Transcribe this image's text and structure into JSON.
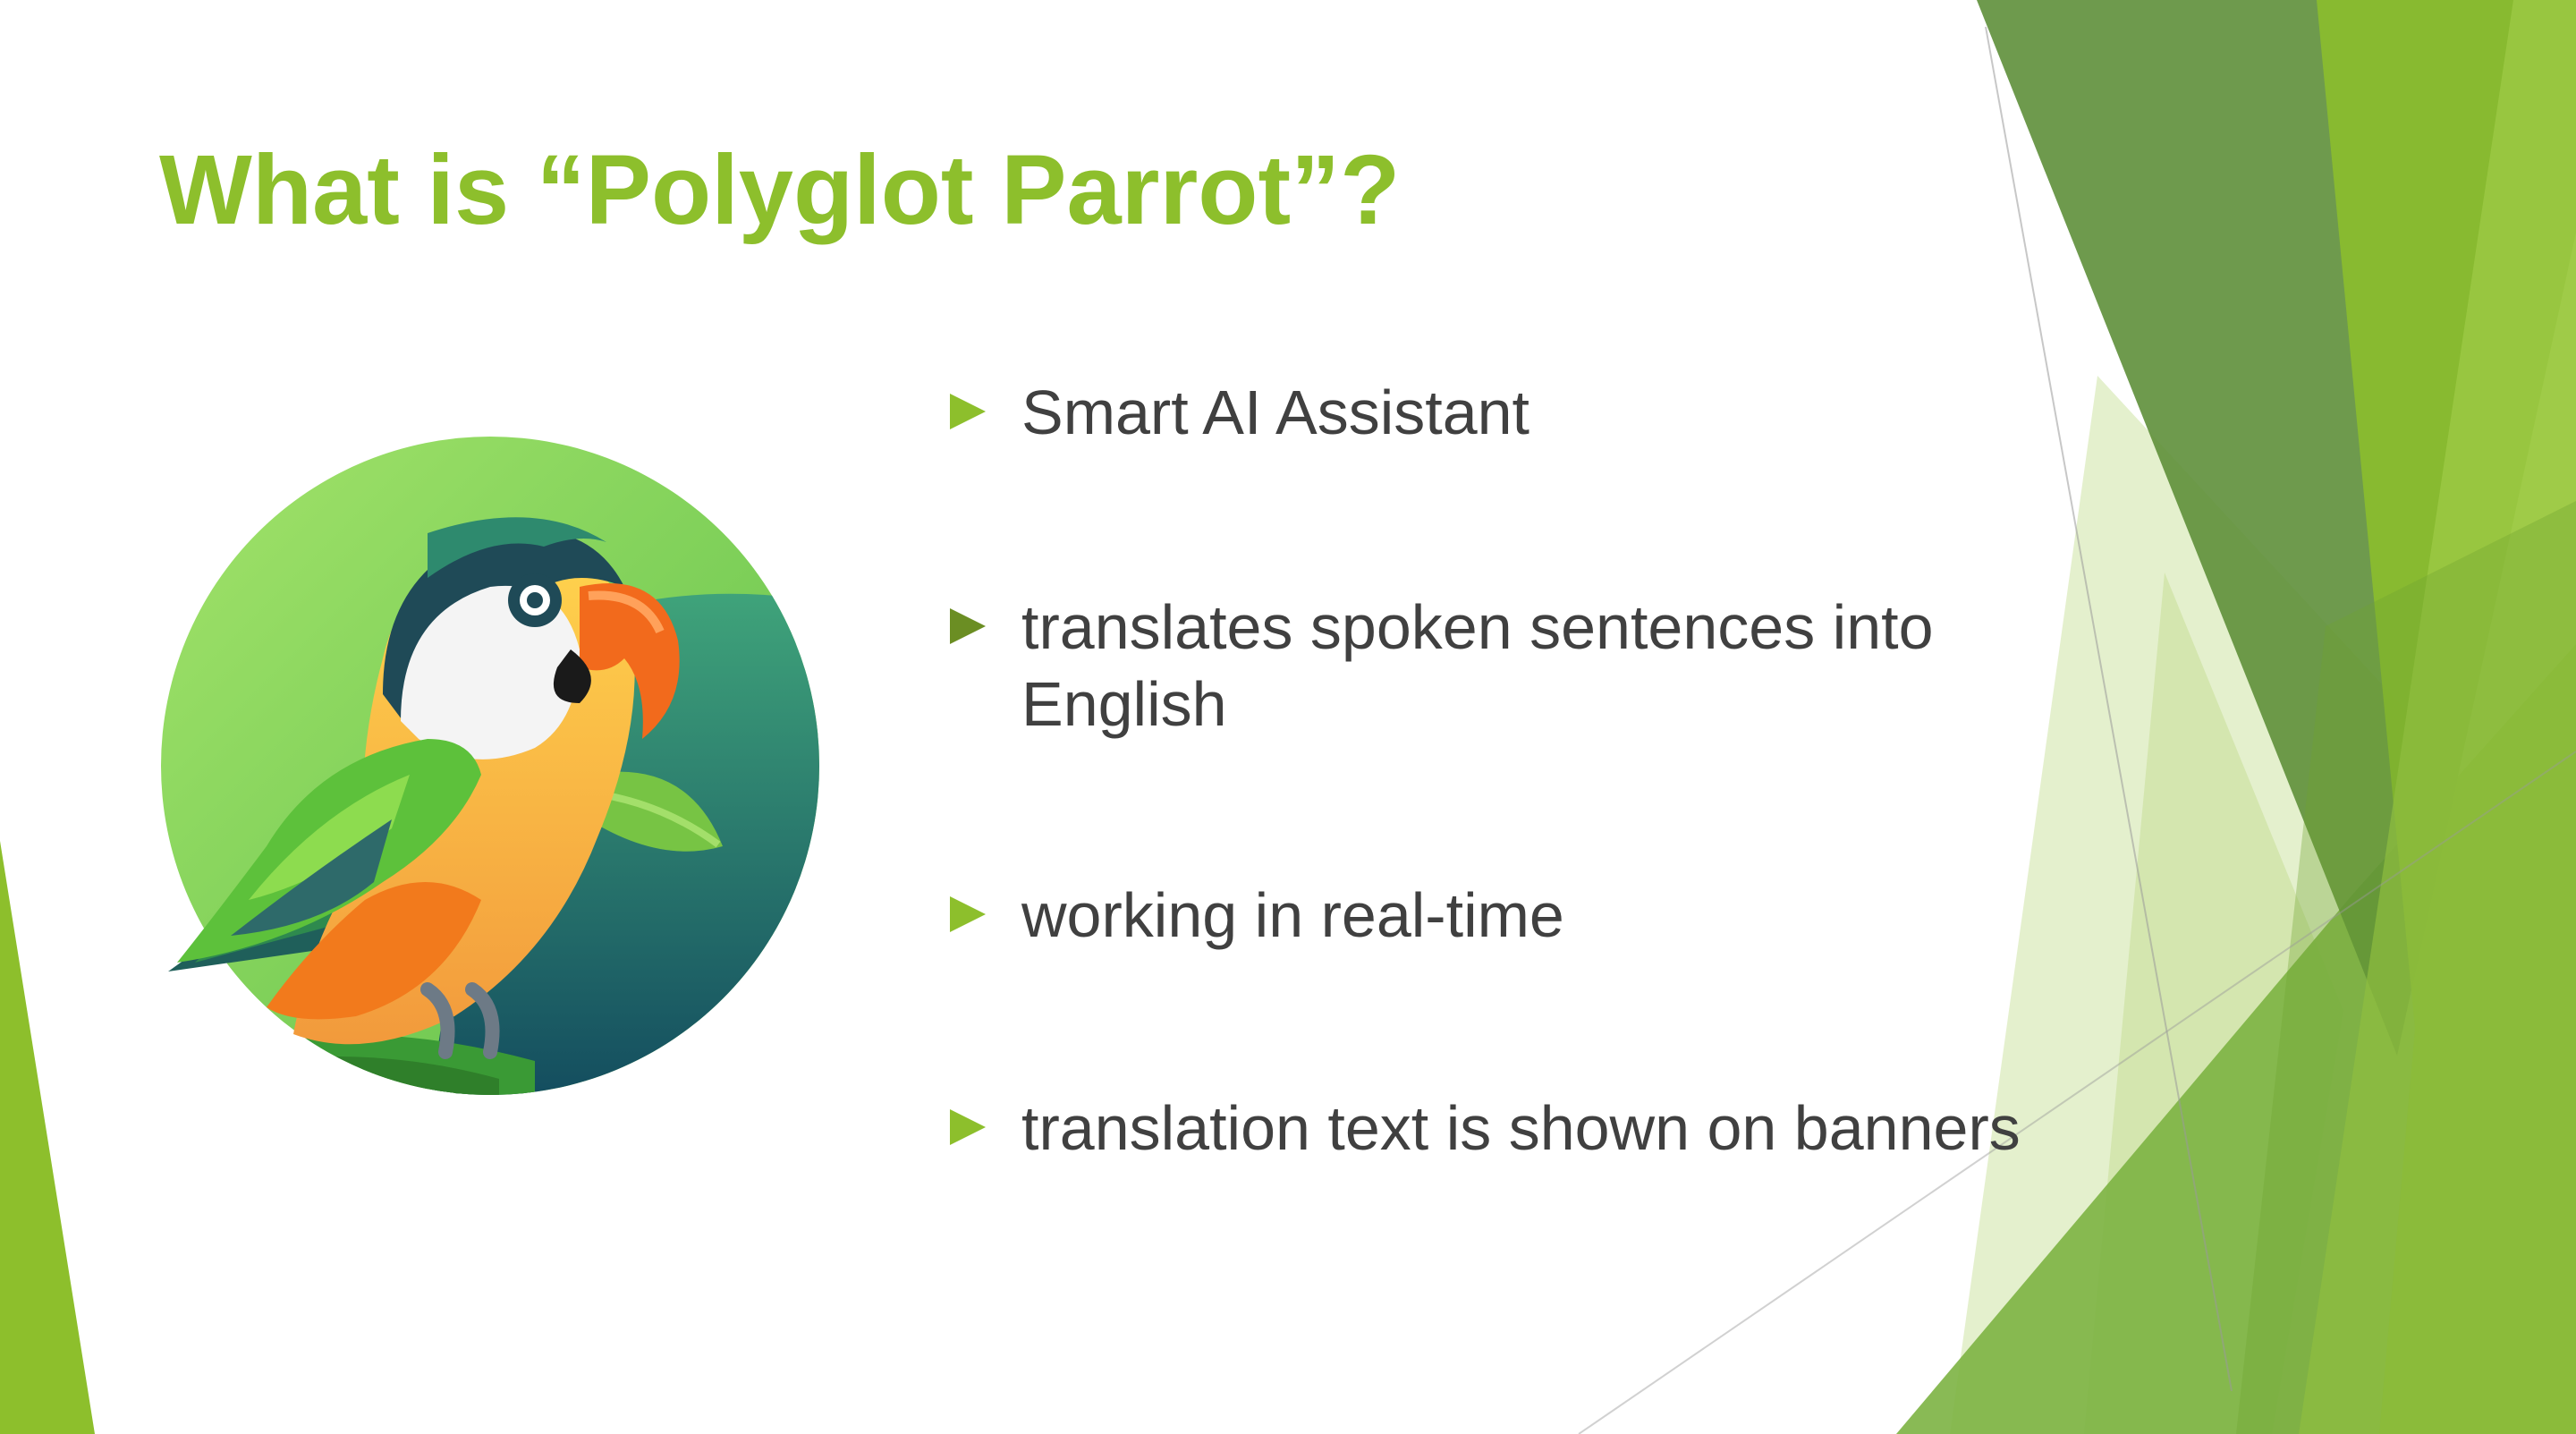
{
  "slide": {
    "title": "What is “Polyglot Parrot”?",
    "logo_icon": "parrot-logo",
    "bullets": [
      {
        "text": "Smart AI Assistant",
        "marker": "triangle-bullet-icon"
      },
      {
        "text": "translates spoken sentences into English",
        "marker": "triangle-bullet-icon"
      },
      {
        "text": "working in real-time",
        "marker": "triangle-bullet-icon"
      },
      {
        "text": "translation text is shown on banners",
        "marker": "triangle-bullet-icon"
      }
    ]
  },
  "colors": {
    "accent": "#8dbf2c",
    "body_text": "#404040",
    "title": "#8dbf2c",
    "deco_dark": "#5e8f3a",
    "deco_light": "#c9e2a0"
  }
}
